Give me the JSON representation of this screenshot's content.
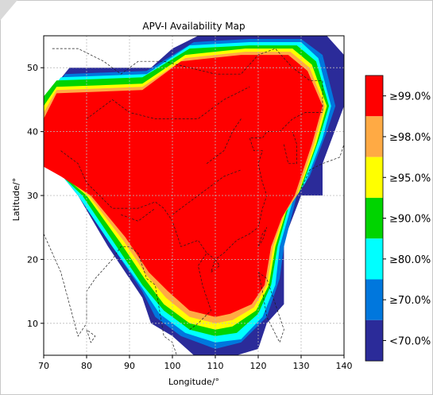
{
  "chart_data": {
    "type": "heatmap",
    "title": "APV-I Availability Map",
    "xlabel": "Longitude/°",
    "ylabel": "Latitude/°",
    "xlim": [
      70,
      140
    ],
    "ylim": [
      5,
      55
    ],
    "xticks": [
      70,
      80,
      90,
      100,
      110,
      120,
      130,
      140
    ],
    "yticks": [
      10,
      20,
      30,
      40,
      50
    ],
    "grid": true,
    "legend_position": "right",
    "legend": [
      {
        "label": "≥99.0%",
        "color": "#ff0000"
      },
      {
        "label": "≥98.0%",
        "color": "#ffaa44"
      },
      {
        "label": "≥95.0%",
        "color": "#ffff00"
      },
      {
        "label": "≥90.0%",
        "color": "#00d400"
      },
      {
        "label": "≥80.0%",
        "color": "#00ffff"
      },
      {
        "label": "≥70.0%",
        "color": "#0077dd"
      },
      {
        "label": "<70.0%",
        "color": "#2b2b99"
      }
    ],
    "regions": [
      {
        "level": "<70.0%",
        "color": "#2b2b99",
        "boundary": [
          [
            70,
            45
          ],
          [
            76,
            50
          ],
          [
            90,
            50
          ],
          [
            95,
            50
          ],
          [
            100,
            53
          ],
          [
            106,
            55
          ],
          [
            120,
            55
          ],
          [
            136,
            55
          ],
          [
            140,
            52
          ],
          [
            140,
            44
          ],
          [
            135,
            35
          ],
          [
            135,
            30
          ],
          [
            133,
            30
          ],
          [
            130,
            30
          ],
          [
            126,
            23
          ],
          [
            126,
            13
          ],
          [
            122,
            10
          ],
          [
            120,
            6
          ],
          [
            115,
            5
          ],
          [
            105,
            5
          ],
          [
            100,
            8
          ],
          [
            95,
            10
          ],
          [
            93,
            14
          ],
          [
            85,
            22
          ],
          [
            78,
            30
          ],
          [
            72,
            35
          ],
          [
            70,
            38
          ]
        ]
      },
      {
        "level": "≥70.0%",
        "color": "#0077dd",
        "boundary": [
          [
            70,
            44
          ],
          [
            75,
            49
          ],
          [
            94,
            49.5
          ],
          [
            105,
            54
          ],
          [
            118,
            54.5
          ],
          [
            130,
            54.5
          ],
          [
            135,
            52
          ],
          [
            138,
            44
          ],
          [
            136,
            40
          ],
          [
            132,
            33
          ],
          [
            129,
            30
          ],
          [
            126,
            22
          ],
          [
            125,
            17
          ],
          [
            122,
            11
          ],
          [
            116,
            7
          ],
          [
            110,
            6
          ],
          [
            102,
            8
          ],
          [
            96,
            11
          ],
          [
            93,
            15
          ],
          [
            86,
            22
          ],
          [
            78,
            30
          ],
          [
            72,
            35
          ],
          [
            70,
            37
          ]
        ]
      },
      {
        "level": "≥80.0%",
        "color": "#00ffff",
        "boundary": [
          [
            70,
            45
          ],
          [
            74,
            48.5
          ],
          [
            94,
            49
          ],
          [
            104,
            53.5
          ],
          [
            118,
            54
          ],
          [
            130,
            54
          ],
          [
            134,
            51.5
          ],
          [
            137,
            44
          ],
          [
            135,
            39
          ],
          [
            131,
            32
          ],
          [
            128,
            29
          ],
          [
            125,
            22
          ],
          [
            124,
            16
          ],
          [
            121,
            11
          ],
          [
            116,
            7.5
          ],
          [
            110,
            7
          ],
          [
            103,
            8.5
          ],
          [
            97,
            11.5
          ],
          [
            93,
            15.5
          ],
          [
            86,
            22
          ],
          [
            78,
            30
          ],
          [
            72,
            35
          ],
          [
            70,
            37.5
          ]
        ]
      },
      {
        "level": "≥90.0%",
        "color": "#00d400",
        "boundary": [
          [
            70,
            45.5
          ],
          [
            73,
            48
          ],
          [
            93,
            48.5
          ],
          [
            104,
            53
          ],
          [
            118,
            53.5
          ],
          [
            129,
            53.5
          ],
          [
            133.5,
            51
          ],
          [
            136.5,
            44
          ],
          [
            134,
            38.5
          ],
          [
            130,
            31
          ],
          [
            127,
            28
          ],
          [
            124.5,
            22
          ],
          [
            123,
            16
          ],
          [
            120,
            11.5
          ],
          [
            115,
            8.5
          ],
          [
            110,
            8
          ],
          [
            104,
            9
          ],
          [
            98,
            12
          ],
          [
            93,
            16
          ],
          [
            87,
            22
          ],
          [
            79,
            30
          ],
          [
            72,
            34.5
          ],
          [
            70,
            36.5
          ]
        ]
      },
      {
        "level": "≥95.0%",
        "color": "#ffff00",
        "boundary": [
          [
            70,
            44
          ],
          [
            73,
            47
          ],
          [
            93,
            47.5
          ],
          [
            103,
            52
          ],
          [
            117,
            53
          ],
          [
            128,
            53
          ],
          [
            132.5,
            50.5
          ],
          [
            136,
            44
          ],
          [
            133.5,
            38
          ],
          [
            129.5,
            30.5
          ],
          [
            126.5,
            27.5
          ],
          [
            124,
            22
          ],
          [
            122.5,
            16
          ],
          [
            119.5,
            12
          ],
          [
            114,
            9.5
          ],
          [
            110,
            9
          ],
          [
            104,
            10
          ],
          [
            98,
            13
          ],
          [
            93.5,
            17
          ],
          [
            88,
            22.5
          ],
          [
            80,
            30
          ],
          [
            73,
            34
          ],
          [
            70,
            35.5
          ]
        ]
      },
      {
        "level": "≥98.0%",
        "color": "#ffaa44",
        "boundary": [
          [
            70,
            43
          ],
          [
            73,
            46.5
          ],
          [
            93,
            47
          ],
          [
            103,
            51.5
          ],
          [
            117,
            52.5
          ],
          [
            127.5,
            52.5
          ],
          [
            132,
            50
          ],
          [
            135.5,
            44
          ],
          [
            133,
            38
          ],
          [
            129,
            30
          ],
          [
            126,
            27
          ],
          [
            123.5,
            22
          ],
          [
            122,
            16
          ],
          [
            119,
            12.5
          ],
          [
            114,
            10.5
          ],
          [
            110,
            10
          ],
          [
            104,
            11
          ],
          [
            98.5,
            14
          ],
          [
            94,
            17.5
          ],
          [
            88.5,
            23
          ],
          [
            80.5,
            30
          ],
          [
            73.5,
            33.5
          ],
          [
            70,
            35
          ]
        ]
      },
      {
        "level": "≥99.0%",
        "color": "#ff0000",
        "boundary": [
          [
            70,
            42
          ],
          [
            73,
            46
          ],
          [
            93,
            46.5
          ],
          [
            102,
            51
          ],
          [
            116,
            52
          ],
          [
            127,
            52
          ],
          [
            131.5,
            49.5
          ],
          [
            135,
            44
          ],
          [
            132.5,
            38
          ],
          [
            128.5,
            30
          ],
          [
            125.5,
            26.5
          ],
          [
            123,
            22
          ],
          [
            121.5,
            16
          ],
          [
            118.5,
            13
          ],
          [
            113.5,
            11.5
          ],
          [
            110,
            11
          ],
          [
            104,
            12
          ],
          [
            99,
            15
          ],
          [
            94.5,
            18
          ],
          [
            89,
            23.5
          ],
          [
            81,
            30
          ],
          [
            74,
            33
          ],
          [
            70,
            34.5
          ]
        ]
      }
    ]
  }
}
